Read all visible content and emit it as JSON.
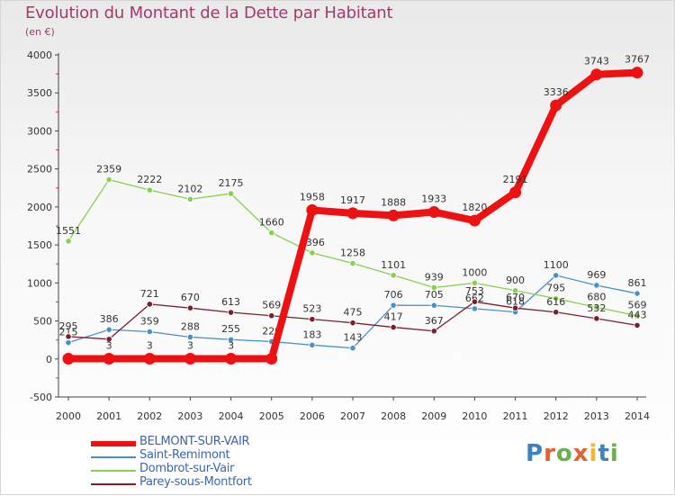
{
  "header": {
    "title": "Evolution du Montant de la Dette par Habitant",
    "unit": "(en €)"
  },
  "logo": {
    "text": "Proxiti",
    "colors": [
      "#3b82c4",
      "#e0622e",
      "#6ab04c",
      "#e0622e",
      "#f2b632",
      "#3b82c4",
      "#6ab04c"
    ]
  },
  "chart_data": {
    "type": "line",
    "title": "Evolution du Montant de la Dette par Habitant",
    "subtitle": "(en €)",
    "xlabel": "",
    "ylabel": "",
    "x": [
      "2000",
      "2001",
      "2002",
      "2003",
      "2004",
      "2005",
      "2006",
      "2007",
      "2008",
      "2009",
      "2010",
      "2011",
      "2012",
      "2013",
      "2014"
    ],
    "ylim": [
      -500,
      4000
    ],
    "yticks": [
      -500,
      0,
      500,
      1000,
      1500,
      2000,
      2500,
      3000,
      3500,
      4000
    ],
    "grid": false,
    "legend_position": "bottom-left",
    "series": [
      {
        "name": "BELMONT-SUR-VAIR",
        "color": "#ee1111",
        "emphasis": true,
        "values": [
          3,
          3,
          3,
          3,
          3,
          3,
          1958,
          1917,
          1888,
          1933,
          1820,
          2191,
          3336,
          3743,
          3767
        ],
        "labels": [
          "",
          "3",
          "3",
          "3",
          "3",
          "",
          "1958",
          "1917",
          "1888",
          "1933",
          "1820",
          "2191",
          "3336",
          "3743",
          "3767"
        ]
      },
      {
        "name": "Saint-Remimont",
        "color": "#4a90c8",
        "values": [
          215,
          386,
          359,
          288,
          255,
          229,
          183,
          143,
          706,
          705,
          662,
          618,
          1100,
          969,
          861
        ],
        "labels": [
          "215",
          "386",
          "359",
          "288",
          "255",
          "229",
          "183",
          "143",
          "706",
          "705",
          "662",
          "618",
          "1100",
          "969",
          "861"
        ]
      },
      {
        "name": "Dombrot-sur-Vair",
        "color": "#88d050",
        "values": [
          1551,
          2359,
          2222,
          2102,
          2175,
          1660,
          1396,
          1258,
          1101,
          939,
          1000,
          900,
          795,
          680,
          569
        ],
        "labels": [
          "1551",
          "2359",
          "2222",
          "2102",
          "2175",
          "1660",
          "1396",
          "1258",
          "1101",
          "939",
          "1000",
          "900",
          "795",
          "680",
          "569"
        ]
      },
      {
        "name": "Parey-sous-Montfort",
        "color": "#7a1f2e",
        "values": [
          295,
          260,
          721,
          670,
          613,
          569,
          523,
          475,
          417,
          367,
          753,
          670,
          616,
          532,
          443
        ],
        "labels": [
          "295",
          "",
          "721",
          "670",
          "613",
          "569",
          "523",
          "475",
          "417",
          "367",
          "753",
          "670",
          "616",
          "532",
          "443"
        ]
      }
    ]
  }
}
